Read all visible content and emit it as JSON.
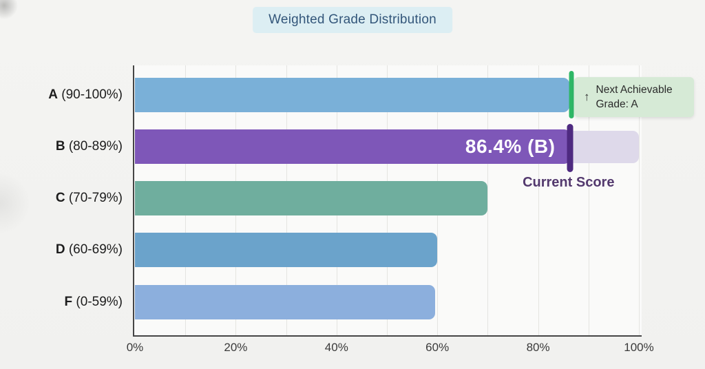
{
  "page": {
    "title_badge": "Weighted Grade Distribution"
  },
  "chart_data": {
    "type": "bar",
    "orientation": "horizontal",
    "title": "Weighted Grade Distribution",
    "categories": [
      "A (90-100%)",
      "B (80-89%)",
      "C (70-79%)",
      "D (60-69%)",
      "F (0-59%)"
    ],
    "values": [
      86.2,
      86.4,
      70,
      60,
      59.5
    ],
    "value_unit": "percent",
    "xlim": [
      0,
      100
    ],
    "x_ticks": [
      "0%",
      "20%",
      "40%",
      "60%",
      "80%",
      "100%"
    ],
    "grid": "vertical gridlines every 10%",
    "legend": "none",
    "bar_colors": [
      "#7ab0d8",
      "#7e57b8",
      "#6fae9e",
      "#6ba3cb",
      "#8cafdd"
    ],
    "annotations": {
      "current_score": {
        "label": "Current Score",
        "pct": 86.4,
        "color": "#4e2a80",
        "row": "B"
      },
      "next_grade": {
        "line1": "Next Achievable",
        "line2": "Grade: A",
        "arrow": "↑",
        "pct": 86.6,
        "color": "#2eb766",
        "badge_bg": "#d6ead6",
        "row": "A"
      },
      "score_bar_label": {
        "text": "86.4% (B)",
        "row": "B"
      },
      "b_row_track": {
        "from_pct": 86.4,
        "width_pct": 13.6,
        "color": "#ded9ea"
      }
    }
  },
  "rows": [
    {
      "grade": "A",
      "range": "(90-100%)"
    },
    {
      "grade": "B",
      "range": "(80-89%)"
    },
    {
      "grade": "C",
      "range": "(70-79%)"
    },
    {
      "grade": "D",
      "range": "(60-69%)"
    },
    {
      "grade": "F",
      "range": "(0-59%)"
    }
  ],
  "colors": {
    "title_text": "#33567a",
    "title_bg": "#dceef3",
    "axis": "#454545",
    "grid": "#e4e4e1",
    "label_text": "#1d1d1d",
    "tick_text": "#3a3a3a"
  }
}
